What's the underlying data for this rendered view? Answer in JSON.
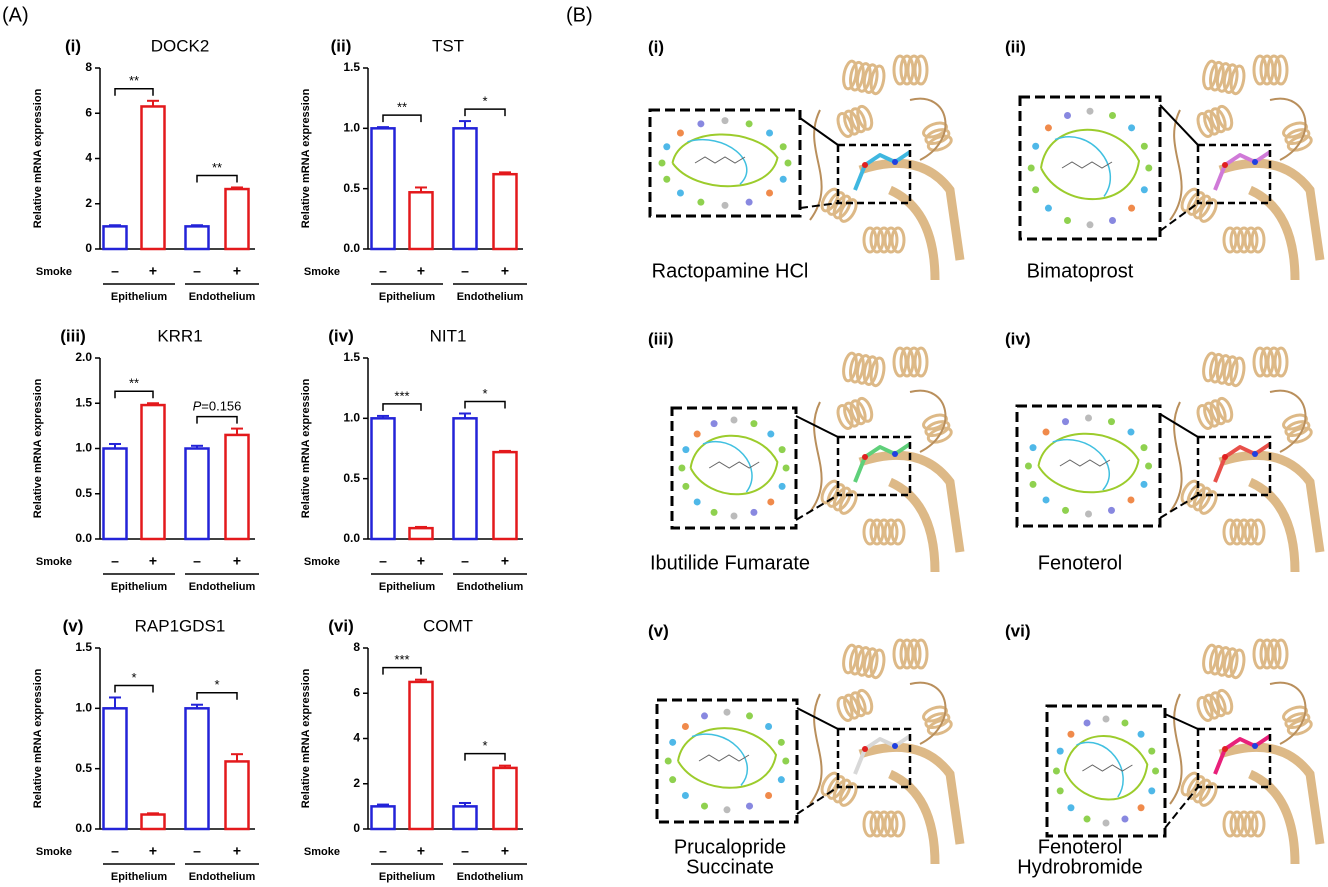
{
  "panels": {
    "a": "(A)",
    "b": "(B)"
  },
  "chart_data": [
    {
      "type": "bar",
      "label": "(i)",
      "title": "DOCK2",
      "y_label": "Relative mRNA expression",
      "row_label": "Smoke",
      "categories": [
        "–",
        "+",
        "–",
        "+"
      ],
      "groups": [
        "Epithelium",
        "Endothelium"
      ],
      "values": [
        1.0,
        6.3,
        1.0,
        2.65
      ],
      "errors": [
        0.05,
        0.25,
        0.05,
        0.07
      ],
      "colors": [
        "#2323d8",
        "#e3191c",
        "#2323d8",
        "#e3191c"
      ],
      "ylim": [
        0,
        8
      ],
      "yticks": [
        0,
        2,
        4,
        6,
        8
      ],
      "significance": [
        "**",
        "**"
      ]
    },
    {
      "type": "bar",
      "label": "(ii)",
      "title": "TST",
      "y_label": "Relative mRNA expression",
      "row_label": "Smoke",
      "categories": [
        "–",
        "+",
        "–",
        "+"
      ],
      "groups": [
        "Epithelium",
        "Endothelium"
      ],
      "values": [
        1.0,
        0.47,
        1.0,
        0.62
      ],
      "errors": [
        0.01,
        0.04,
        0.06,
        0.015
      ],
      "colors": [
        "#2323d8",
        "#e3191c",
        "#2323d8",
        "#e3191c"
      ],
      "ylim": [
        0,
        1.5
      ],
      "yticks": [
        {
          "value": 0,
          "label": "0.0"
        },
        0.5,
        {
          "value": 1,
          "label": "1.0"
        },
        1.5
      ],
      "significance": [
        "**",
        "*"
      ]
    },
    {
      "type": "bar",
      "label": "(iii)",
      "title": "KRR1",
      "y_label": "Relative mRNA expression",
      "row_label": "Smoke",
      "categories": [
        "–",
        "+",
        "–",
        "+"
      ],
      "groups": [
        "Epithelium",
        "Endothelium"
      ],
      "values": [
        1.0,
        1.48,
        1.0,
        1.15
      ],
      "errors": [
        0.05,
        0.02,
        0.03,
        0.07
      ],
      "colors": [
        "#2323d8",
        "#e3191c",
        "#2323d8",
        "#e3191c"
      ],
      "ylim": [
        0,
        2
      ],
      "yticks": [
        {
          "value": 0,
          "label": "0.0"
        },
        0.5,
        {
          "value": 1,
          "label": "1.0"
        },
        1.5,
        {
          "value": 2,
          "label": "2.0"
        }
      ],
      "significance": [
        "**",
        {
          "italic": "P",
          "text": "=0.156"
        }
      ]
    },
    {
      "type": "bar",
      "label": "(iv)",
      "title": "NIT1",
      "y_label": "Relative mRNA expression",
      "row_label": "Smoke",
      "categories": [
        "–",
        "+",
        "–",
        "+"
      ],
      "groups": [
        "Epithelium",
        "Endothelium"
      ],
      "values": [
        1.0,
        0.09,
        1.0,
        0.72
      ],
      "errors": [
        0.02,
        0.01,
        0.04,
        0.01
      ],
      "colors": [
        "#2323d8",
        "#e3191c",
        "#2323d8",
        "#e3191c"
      ],
      "ylim": [
        0,
        1.5
      ],
      "yticks": [
        {
          "value": 0,
          "label": "0.0"
        },
        0.5,
        {
          "value": 1,
          "label": "1.0"
        },
        1.5
      ],
      "significance": [
        "***",
        "*"
      ]
    },
    {
      "type": "bar",
      "label": "(v)",
      "title": "RAP1GDS1",
      "y_label": "Relative mRNA expression",
      "row_label": "Smoke",
      "categories": [
        "–",
        "+",
        "–",
        "+"
      ],
      "groups": [
        "Epithelium",
        "Endothelium"
      ],
      "values": [
        1.0,
        0.12,
        1.0,
        0.56
      ],
      "errors": [
        0.09,
        0.01,
        0.03,
        0.06
      ],
      "colors": [
        "#2323d8",
        "#e3191c",
        "#2323d8",
        "#e3191c"
      ],
      "ylim": [
        0,
        1.5
      ],
      "yticks": [
        {
          "value": 0,
          "label": "0.0"
        },
        0.5,
        {
          "value": 1,
          "label": "1.0"
        },
        1.5
      ],
      "significance": [
        "*",
        "*"
      ]
    },
    {
      "type": "bar",
      "label": "(vi)",
      "title": "COMT",
      "y_label": "Relative mRNA expression",
      "row_label": "Smoke",
      "categories": [
        "–",
        "+",
        "–",
        "+"
      ],
      "groups": [
        "Epithelium",
        "Endothelium"
      ],
      "values": [
        1.0,
        6.5,
        1.0,
        2.7
      ],
      "errors": [
        0.08,
        0.1,
        0.15,
        0.1
      ],
      "colors": [
        "#2323d8",
        "#e3191c",
        "#2323d8",
        "#e3191c"
      ],
      "ylim": [
        0,
        8
      ],
      "yticks": [
        0,
        2,
        4,
        6,
        8
      ],
      "significance": [
        "***",
        "*"
      ]
    }
  ],
  "docking": [
    {
      "label": "(i)",
      "name": [
        "Ractopamine HCl"
      ],
      "ligand_color": "#3fb7e0"
    },
    {
      "label": "(ii)",
      "name": [
        "Bimatoprost"
      ],
      "ligand_color": "#d07ad8"
    },
    {
      "label": "(iii)",
      "name": [
        "Ibutilide Fumarate"
      ],
      "ligand_color": "#5fd07a"
    },
    {
      "label": "(iv)",
      "name": [
        "Fenoterol"
      ],
      "ligand_color": "#e8504a"
    },
    {
      "label": "(v)",
      "name": [
        "Prucalopride",
        "Succinate"
      ],
      "ligand_color": "#d8d8d8"
    },
    {
      "label": "(vi)",
      "name": [
        "Fenoterol",
        "Hydrobromide"
      ],
      "ligand_color": "#e8207a"
    }
  ]
}
